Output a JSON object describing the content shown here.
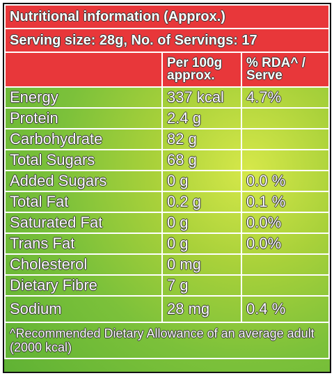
{
  "title": "Nutritional information (Approx.)",
  "serving": "Serving size: 28g, No. of Servings: 17",
  "columns": {
    "per100g": "Per 100g approx.",
    "rda": "% RDA^ / Serve"
  },
  "rows": [
    {
      "nutrient": "Energy",
      "per100g": "337 kcal",
      "rda": "4.7%"
    },
    {
      "nutrient": "Protein",
      "per100g": "2.4 g"
    },
    {
      "nutrient": "Carbohydrate",
      "per100g": "82 g"
    },
    {
      "nutrient": "Total Sugars",
      "per100g": "68 g"
    },
    {
      "nutrient": "Added Sugars",
      "per100g": "0 g",
      "rda": "0.0 %"
    },
    {
      "nutrient": "Total Fat",
      "per100g": "0.2 g",
      "rda": "0.1 %"
    },
    {
      "nutrient": "Saturated Fat",
      "per100g": "0 g",
      "rda": "0.0%"
    },
    {
      "nutrient": "Trans Fat",
      "per100g": "0 g",
      "rda": "0.0%"
    },
    {
      "nutrient": "Cholesterol",
      "per100g": "0 mg"
    },
    {
      "nutrient": "Dietary Fibre",
      "per100g": "7 g"
    },
    {
      "nutrient": "Sodium",
      "per100g": "28 mg",
      "rda": "0.4 %"
    }
  ],
  "footnote": "^Recommended Dietary Allowance of an average adult (2000 kcal)"
}
